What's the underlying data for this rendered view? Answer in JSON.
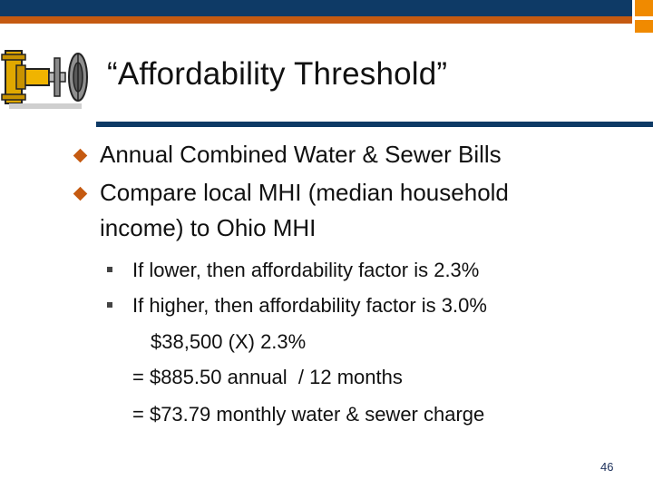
{
  "slide": {
    "title": "“Affordability Threshold”",
    "bullets": [
      "Annual Combined Water & Sewer Bills",
      "Compare local MHI (median household",
      "income) to Ohio MHI"
    ],
    "sub_bullets": [
      "If lower, then affordability factor is 2.3%",
      "If higher, then affordability factor is 3.0%"
    ],
    "calc_lines": [
      "$38,500 (X) 2.3%",
      "= $885.50 annual  / 12 months",
      "= $73.79 monthly water & sewer charge"
    ],
    "page_number": "46"
  },
  "colors": {
    "navy": "#0e3a66",
    "orange_accent": "#c55a11",
    "corner_orange": "#f08a00"
  },
  "icons": {
    "logo": "water-valve-pipe-icon",
    "bullet": "diamond-bullet-icon",
    "sub_bullet": "square-bullet-icon"
  }
}
